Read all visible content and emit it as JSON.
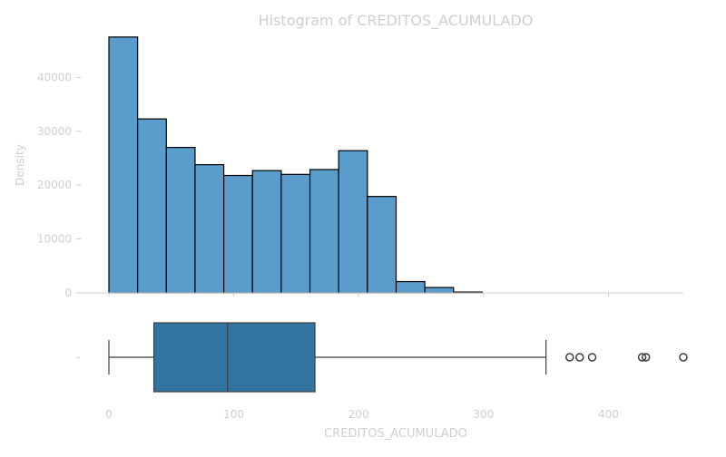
{
  "chart_data": {
    "type": "histogram",
    "title": "Histogram of CREDITOS_ACUMULADO",
    "xlabel": "CREDITOS_ACUMULADO",
    "ylabel": "Density",
    "xlim": [
      0,
      460
    ],
    "ylim": [
      0,
      50000
    ],
    "x_ticks": [
      0,
      100,
      200,
      300,
      400
    ],
    "y_ticks": [
      0,
      10000,
      20000,
      30000,
      40000
    ],
    "bin_width": 23,
    "bins": [
      {
        "x0": 0,
        "x1": 23,
        "count": 47500
      },
      {
        "x0": 23,
        "x1": 46,
        "count": 32300
      },
      {
        "x0": 46,
        "x1": 69,
        "count": 27000
      },
      {
        "x0": 69,
        "x1": 92,
        "count": 23800
      },
      {
        "x0": 92,
        "x1": 115,
        "count": 21800
      },
      {
        "x0": 115,
        "x1": 138,
        "count": 22700
      },
      {
        "x0": 138,
        "x1": 161,
        "count": 22000
      },
      {
        "x0": 161,
        "x1": 184,
        "count": 22900
      },
      {
        "x0": 184,
        "x1": 207,
        "count": 26400
      },
      {
        "x0": 207,
        "x1": 230,
        "count": 17900
      },
      {
        "x0": 230,
        "x1": 253,
        "count": 2100
      },
      {
        "x0": 253,
        "x1": 276,
        "count": 1000
      },
      {
        "x0": 276,
        "x1": 299,
        "count": 150
      }
    ],
    "boxplot": {
      "whisker_low": 0,
      "q1": 36,
      "median": 95,
      "q3": 165,
      "whisker_high": 350,
      "outliers": [
        369,
        377,
        387,
        427,
        430,
        460
      ],
      "category_label": "-"
    },
    "colors": {
      "hist_fill": "#5a9ccb",
      "box_fill": "#3274a1",
      "edge": "#000000",
      "box_edge": "#3f3f3f",
      "text": "#cfcfcf",
      "axis": "#cccccc"
    },
    "grid": false,
    "legend": "none"
  }
}
